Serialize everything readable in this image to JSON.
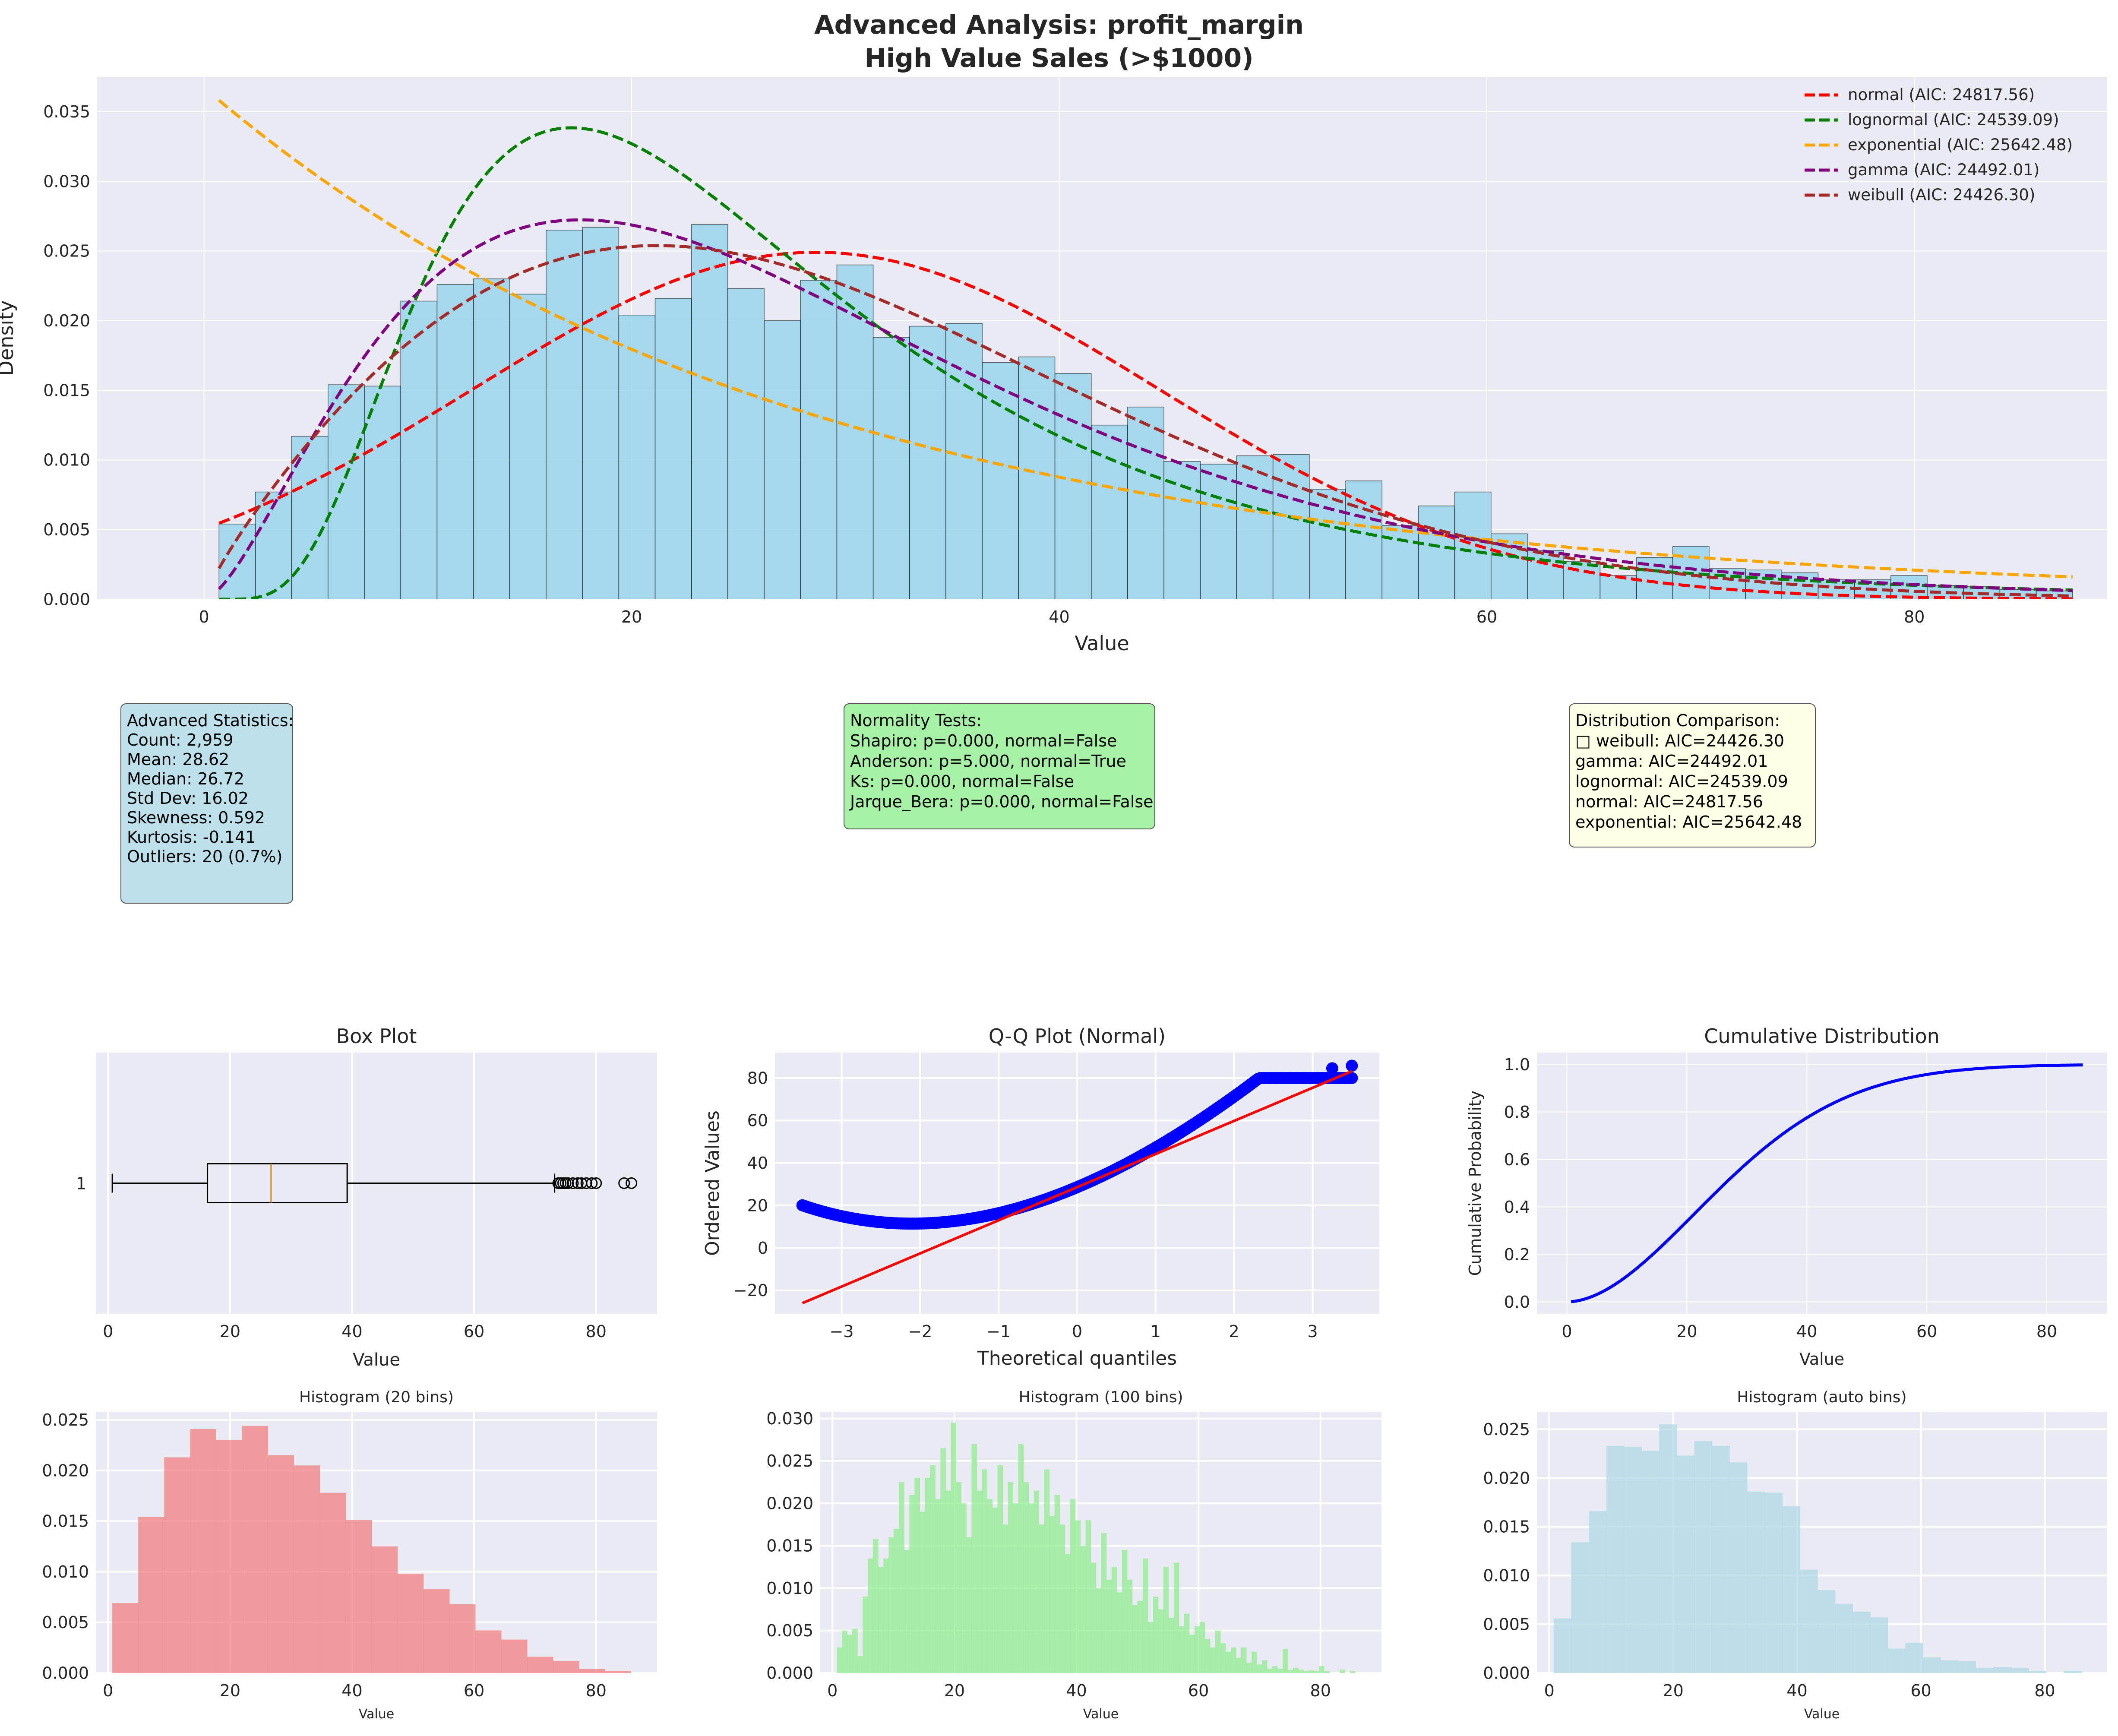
{
  "figure": {
    "title_line1": "Advanced Analysis: profit_margin",
    "title_line2": "High Value Sales (>$1000)"
  },
  "chart_data": [
    {
      "id": "main",
      "type": "bar",
      "xlabel": "Value",
      "ylabel": "Density",
      "xlim": [
        -5,
        89
      ],
      "ylim": [
        0,
        0.0375
      ],
      "xticks": [
        0,
        20,
        40,
        60,
        80
      ],
      "yticks": [
        0.0,
        0.005,
        0.01,
        0.015,
        0.02,
        0.025,
        0.03,
        0.035
      ],
      "bin_start": 0.7,
      "bin_width": 1.7,
      "values": [
        0.0054,
        0.0077,
        0.0117,
        0.0154,
        0.0153,
        0.0214,
        0.0226,
        0.023,
        0.0219,
        0.0265,
        0.0267,
        0.0204,
        0.0216,
        0.0269,
        0.0223,
        0.02,
        0.0229,
        0.024,
        0.0188,
        0.0196,
        0.0198,
        0.017,
        0.0174,
        0.0162,
        0.0125,
        0.0138,
        0.0099,
        0.0097,
        0.0103,
        0.0104,
        0.0079,
        0.0085,
        0.0053,
        0.0067,
        0.0077,
        0.0047,
        0.0035,
        0.0027,
        0.0017,
        0.003,
        0.0038,
        0.0022,
        0.0021,
        0.0019,
        0.0014,
        0.0014,
        0.0017,
        0.001,
        0.0009,
        0.0007,
        0.0006
      ],
      "legend_position": "top-right",
      "series": [
        {
          "name": "normal (AIC: 24817.56)",
          "color": "#ff0000",
          "dist": "normal",
          "params": {
            "mu": 28.62,
            "sigma": 16.02
          }
        },
        {
          "name": "lognormal (AIC: 24539.09)",
          "color": "#008000",
          "dist": "lognormal",
          "params": {
            "mu": 3.18,
            "s": 0.58
          }
        },
        {
          "name": "exponential (AIC: 25642.48)",
          "color": "#ffa500",
          "dist": "exponential",
          "params": {
            "loc": 0.7,
            "scale": 27.92
          }
        },
        {
          "name": "gamma (AIC: 24492.01)",
          "color": "#800080",
          "dist": "gamma",
          "params": {
            "k": 2.6,
            "theta": 11.0
          }
        },
        {
          "name": "weibull (AIC: 24426.30)",
          "color": "#a52a2a",
          "dist": "weibull",
          "params": {
            "k": 1.85,
            "lambda": 32.2
          }
        }
      ]
    },
    {
      "id": "boxplot",
      "type": "box",
      "title": "Box Plot",
      "xlabel": "Value",
      "ytick": "1",
      "xlim": [
        -2,
        90
      ],
      "xticks": [
        0,
        20,
        40,
        60,
        80
      ],
      "whisker_low": 0.7,
      "q1": 16.3,
      "median": 26.72,
      "q3": 39.2,
      "whisker_high": 73.2,
      "outliers": [
        73.8,
        74.2,
        74.6,
        75.0,
        75.4,
        76.2,
        77.0,
        77.6,
        78.4,
        79.3,
        80.0,
        84.6,
        85.8
      ]
    },
    {
      "id": "qq",
      "type": "scatter",
      "title": "Q-Q Plot (Normal)",
      "xlabel": "Theoretical quantiles",
      "ylabel": "Ordered Values",
      "xlim": [
        -3.85,
        3.85
      ],
      "ylim": [
        -31,
        92
      ],
      "xticks": [
        -3,
        -2,
        -1,
        0,
        1,
        2,
        3
      ],
      "yticks": [
        -20,
        0,
        20,
        40,
        60,
        80
      ],
      "fit_line": {
        "intercept": 28.62,
        "slope": 15.6
      }
    },
    {
      "id": "cdf",
      "type": "line",
      "title": "Cumulative Distribution",
      "xlabel": "Value",
      "ylabel": "Cumulative Probability",
      "xlim": [
        -5,
        90
      ],
      "ylim": [
        -0.05,
        1.05
      ],
      "xticks": [
        0,
        20,
        40,
        60,
        80
      ],
      "yticks": [
        0.0,
        0.2,
        0.4,
        0.6,
        0.8,
        1.0
      ]
    },
    {
      "id": "hist20",
      "type": "bar",
      "title": "Histogram (20 bins)",
      "xlabel": "Value",
      "xlim": [
        -2,
        90
      ],
      "ylim": [
        0,
        0.0258
      ],
      "xticks": [
        0,
        20,
        40,
        60,
        80
      ],
      "yticks": [
        0.0,
        0.005,
        0.01,
        0.015,
        0.02,
        0.025
      ],
      "bin_start": 0.7,
      "bin_width": 4.25,
      "values": [
        0.0069,
        0.0154,
        0.0213,
        0.0241,
        0.023,
        0.0244,
        0.0215,
        0.0205,
        0.0178,
        0.0151,
        0.0125,
        0.0098,
        0.0083,
        0.0068,
        0.0042,
        0.0033,
        0.0016,
        0.0012,
        0.0004,
        0.0002
      ],
      "color": "#f08080"
    },
    {
      "id": "hist100",
      "type": "bar",
      "title": "Histogram (100 bins)",
      "xlabel": "Value",
      "xlim": [
        -2,
        90
      ],
      "ylim": [
        0,
        0.0308
      ],
      "xticks": [
        0,
        20,
        40,
        60,
        80
      ],
      "yticks": [
        0.0,
        0.005,
        0.01,
        0.015,
        0.02,
        0.025,
        0.03
      ],
      "bin_start": 0.7,
      "bin_width": 0.85,
      "values": [
        0.003,
        0.005,
        0.0045,
        0.0052,
        0.002,
        0.009,
        0.0135,
        0.0158,
        0.0125,
        0.0135,
        0.016,
        0.017,
        0.0225,
        0.0145,
        0.021,
        0.023,
        0.019,
        0.023,
        0.0245,
        0.0205,
        0.0265,
        0.0215,
        0.0295,
        0.0225,
        0.02,
        0.016,
        0.027,
        0.0215,
        0.024,
        0.0205,
        0.0195,
        0.0245,
        0.0175,
        0.0225,
        0.02,
        0.027,
        0.0225,
        0.02,
        0.0215,
        0.0175,
        0.024,
        0.0185,
        0.021,
        0.0175,
        0.014,
        0.0205,
        0.018,
        0.015,
        0.018,
        0.013,
        0.01,
        0.0165,
        0.011,
        0.0125,
        0.0095,
        0.0145,
        0.011,
        0.008,
        0.0085,
        0.0135,
        0.006,
        0.009,
        0.0075,
        0.0125,
        0.0065,
        0.013,
        0.0055,
        0.007,
        0.0045,
        0.0055,
        0.006,
        0.004,
        0.003,
        0.005,
        0.0035,
        0.0025,
        0.003,
        0.0018,
        0.003,
        0.0012,
        0.0025,
        0.001,
        0.0015,
        0.0005,
        0.0008,
        0.0005,
        0.0028,
        0.0004,
        0.0006,
        0.0004,
        0.0002,
        0.0003,
        0.0002,
        0.0008,
        0.0002,
        0.0,
        0.0,
        0.0004,
        0.0,
        0.0002
      ],
      "color": "#90ee90"
    },
    {
      "id": "histauto",
      "type": "bar",
      "title": "Histogram (auto bins)",
      "xlabel": "Value",
      "xlim": [
        -2,
        90
      ],
      "ylim": [
        0,
        0.0268
      ],
      "xticks": [
        0,
        20,
        40,
        60,
        80
      ],
      "yticks": [
        0.0,
        0.005,
        0.01,
        0.015,
        0.02,
        0.025
      ],
      "bin_start": 0.7,
      "bin_width": 2.84,
      "values": [
        0.0056,
        0.0134,
        0.0166,
        0.0233,
        0.0232,
        0.0228,
        0.0255,
        0.0223,
        0.0238,
        0.0233,
        0.0216,
        0.0186,
        0.0185,
        0.0171,
        0.0106,
        0.0085,
        0.0071,
        0.0063,
        0.0057,
        0.0025,
        0.0031,
        0.0016,
        0.0013,
        0.0012,
        0.0005,
        0.0006,
        0.0005,
        0.0002,
        0.0,
        0.0002
      ],
      "color": "#add8e6"
    }
  ],
  "stats_box": {
    "lines": [
      "Advanced Statistics:",
      "Count: 2,959",
      "Mean: 28.62",
      "Median: 26.72",
      "Std Dev: 16.02",
      "Skewness: 0.592",
      "Kurtosis: -0.141",
      "Outliers: 20 (0.7%)"
    ],
    "bg": "#add8e6"
  },
  "normality_box": {
    "lines": [
      "Normality Tests:",
      "Shapiro: p=0.000, normal=False",
      "Anderson: p=5.000, normal=True",
      "Ks: p=0.000, normal=False",
      "Jarque_Bera: p=0.000, normal=False"
    ],
    "bg": "#90ee90"
  },
  "comparison_box": {
    "lines": [
      "Distribution Comparison:",
      "□ weibull: AIC=24426.30",
      "   gamma: AIC=24492.01",
      "   lognormal: AIC=24539.09",
      "   normal: AIC=24817.56",
      "   exponential: AIC=25642.48"
    ],
    "bg": "#ffffe0"
  }
}
